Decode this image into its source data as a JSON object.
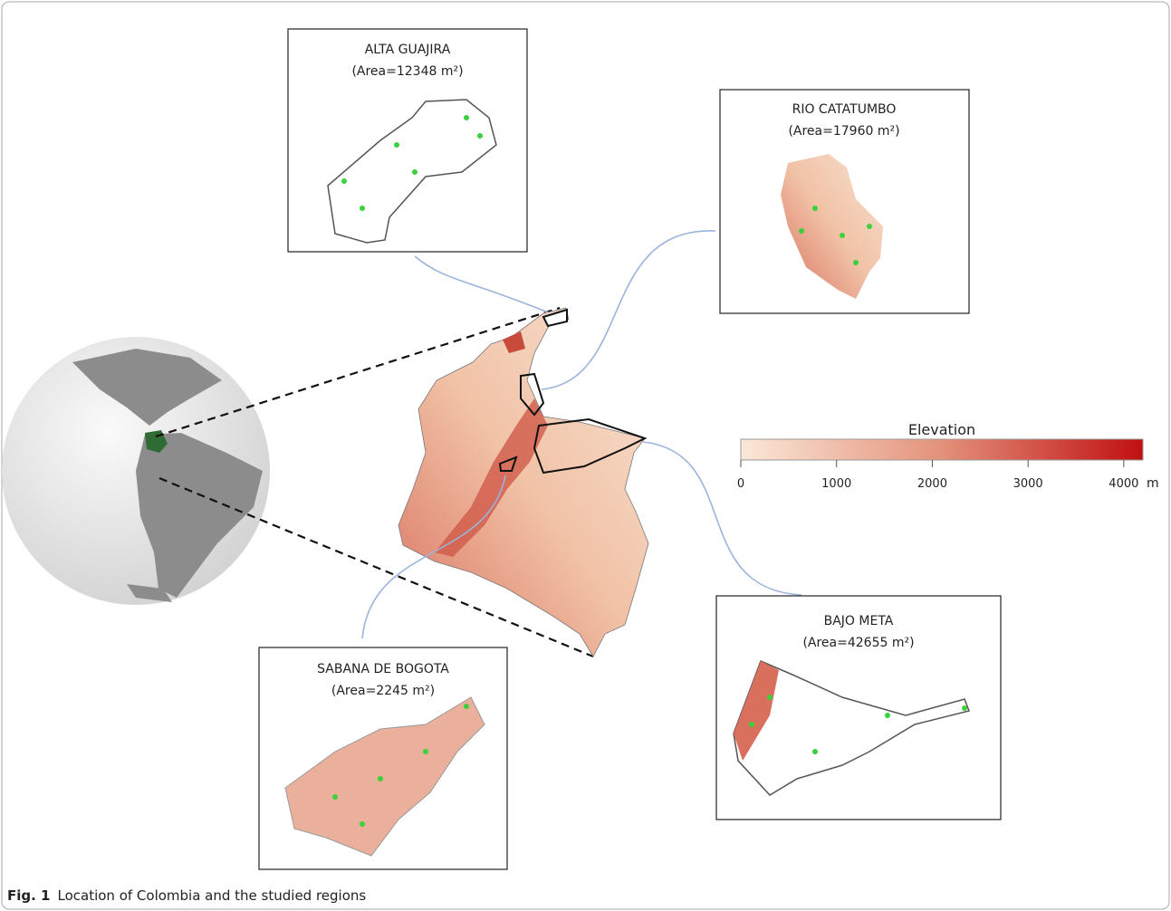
{
  "panels": [
    {
      "title": "ALTA GUAJIRA",
      "area": "(Area=12348 m²)"
    },
    {
      "title": "RIO CATATUMBO",
      "area": "(Area=17960 m²)"
    },
    {
      "title": "SABANA DE BOGOTA",
      "area": "(Area=2245 m²)"
    },
    {
      "title": "BAJO META",
      "area": "(Area=42655 m²)"
    }
  ],
  "legend": {
    "title": "Elevation",
    "range": [
      0,
      4200
    ],
    "ticks": [
      0,
      1000,
      2000,
      3000,
      4000
    ],
    "unit": "m"
  },
  "caption": {
    "label": "Fig. 1",
    "text": "Location of Colombia and the studied regions"
  }
}
